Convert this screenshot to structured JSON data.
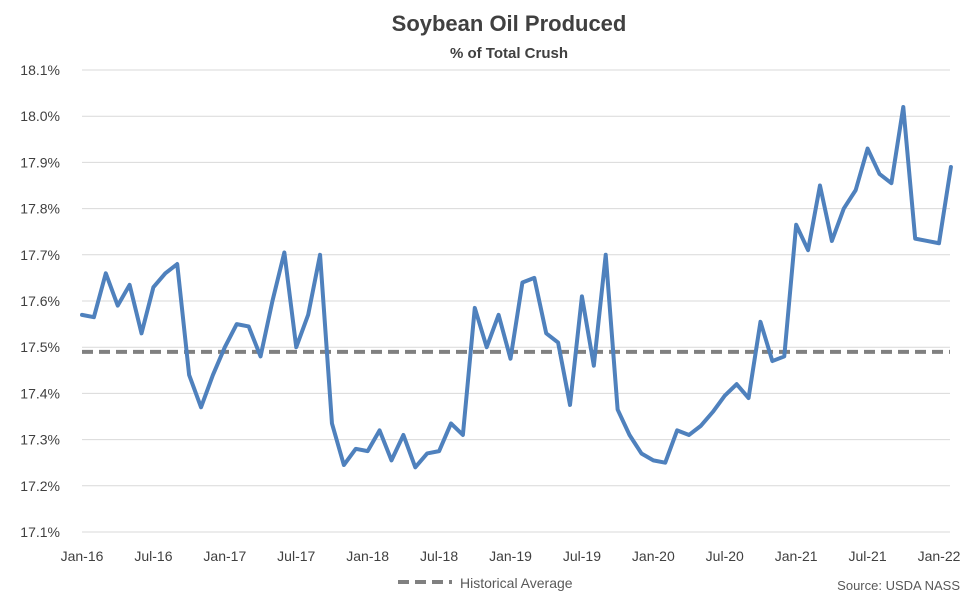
{
  "chart_data": {
    "type": "line",
    "title": "Soybean Oil Produced",
    "subtitle": "% of Total Crush",
    "source": "Source: USDA NASS",
    "ylim": [
      17.1,
      18.1
    ],
    "y_ticks": [
      "17.1%",
      "17.2%",
      "17.3%",
      "17.4%",
      "17.5%",
      "17.6%",
      "17.7%",
      "17.8%",
      "17.9%",
      "18.0%",
      "18.1%"
    ],
    "x_ticks": [
      "Jan-16",
      "Jul-16",
      "Jan-17",
      "Jul-17",
      "Jan-18",
      "Jul-18",
      "Jan-19",
      "Jul-19",
      "Jan-20",
      "Jul-20",
      "Jan-21",
      "Jul-21",
      "Jan-22"
    ],
    "x_start": "Jan-16",
    "grid": true,
    "legend_position": "bottom",
    "series": [
      {
        "color": "#4f81bd",
        "values": [
          17.57,
          17.565,
          17.66,
          17.59,
          17.635,
          17.53,
          17.63,
          17.66,
          17.68,
          17.44,
          17.37,
          17.44,
          17.5,
          17.55,
          17.545,
          17.48,
          17.6,
          17.705,
          17.5,
          17.57,
          17.7,
          17.335,
          17.245,
          17.28,
          17.275,
          17.32,
          17.255,
          17.31,
          17.24,
          17.27,
          17.275,
          17.335,
          17.31,
          17.585,
          17.5,
          17.57,
          17.475,
          17.64,
          17.65,
          17.53,
          17.51,
          17.375,
          17.61,
          17.46,
          17.7,
          17.365,
          17.31,
          17.27,
          17.255,
          17.25,
          17.32,
          17.31,
          17.33,
          17.36,
          17.395,
          17.42,
          17.39,
          17.555,
          17.47,
          17.48,
          17.765,
          17.71,
          17.85,
          17.73,
          17.8,
          17.84,
          17.93,
          17.875,
          17.855,
          18.02,
          17.735,
          17.73,
          17.725,
          17.89
        ]
      },
      {
        "name": "Historical Average",
        "color": "#808080",
        "dashed": true,
        "values": [
          17.49,
          17.49
        ]
      }
    ]
  }
}
